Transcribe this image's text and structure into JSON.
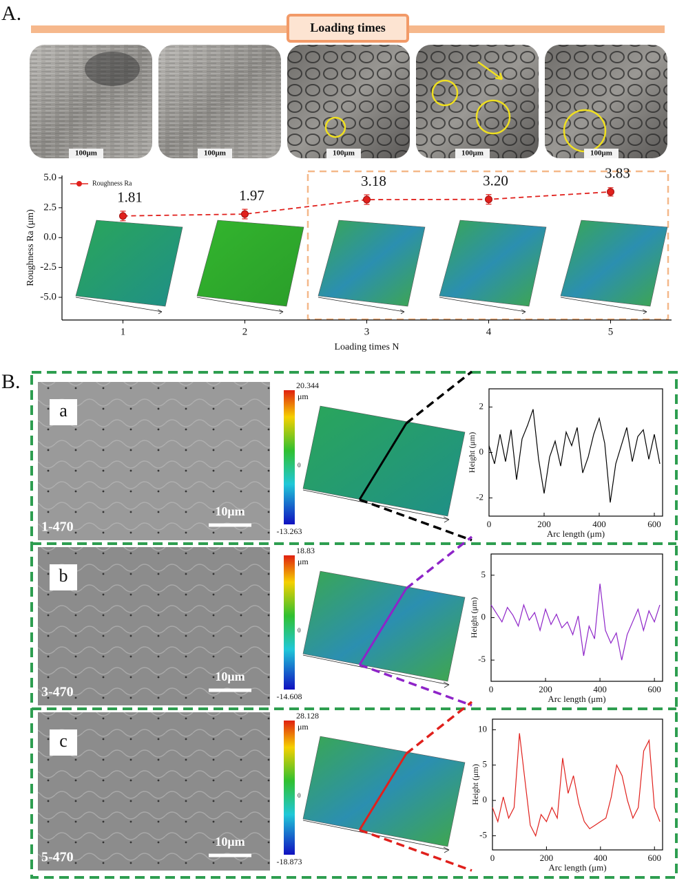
{
  "figure": {
    "label_a": "A.",
    "banner": "Loading times",
    "micrograph_scales": [
      "100μm",
      "100μm",
      "100μm",
      "100μm",
      "100μm"
    ],
    "label_b": "B.",
    "rows": [
      {
        "letter": "a",
        "sample": "1-470",
        "scale": "10μm",
        "colorbar": {
          "max": 20.344,
          "unit": "μm",
          "mid": 0,
          "min": -13.263
        }
      },
      {
        "letter": "b",
        "sample": "3-470",
        "scale": "10μm",
        "colorbar": {
          "max": 18.83,
          "unit": "μm",
          "mid": 0,
          "min": -14.608
        }
      },
      {
        "letter": "c",
        "sample": "5-470",
        "scale": "10μm",
        "colorbar": {
          "max": 28.128,
          "unit": "μm",
          "mid": 0,
          "min": -18.873
        }
      }
    ]
  },
  "chart_data": [
    {
      "type": "line",
      "x": [
        1,
        2,
        3,
        4,
        5
      ],
      "xlim": [
        0.5,
        5.5
      ],
      "xticks": [
        1,
        2,
        3,
        4,
        5
      ],
      "ylim": [
        -6.9,
        5.2
      ],
      "yticks": [
        {
          "value": -5,
          "label": "-5.0"
        },
        {
          "value": -2.5,
          "label": "-2.5"
        },
        {
          "value": 0,
          "label": "0.0"
        },
        {
          "value": 2.5,
          "label": "2.5"
        },
        {
          "value": 5,
          "label": "5.0"
        }
      ],
      "xlabel": "Loading times N",
      "ylabel": "Roughness Ra (μm)",
      "legend": "top-left",
      "series": [
        {
          "name": "Roughness Ra",
          "color": "#e0201c",
          "values": [
            1.81,
            1.97,
            3.18,
            3.2,
            3.83
          ],
          "errors": [
            0.4,
            0.4,
            0.4,
            0.4,
            0.35
          ],
          "value_labels": [
            "1.81",
            "1.97",
            "3.18",
            "3.20",
            "3.83"
          ]
        }
      ]
    },
    {
      "type": "line",
      "color": "#000000",
      "xlabel": "Arc length (μm)",
      "ylabel": "Height (μm)",
      "xlim": [
        0,
        630
      ],
      "xticks": [
        0,
        200,
        400,
        600
      ],
      "ylim": [
        -2.8,
        2.8
      ],
      "yticks": [
        -2,
        0,
        2
      ],
      "x": [
        0,
        20,
        40,
        60,
        80,
        100,
        120,
        140,
        160,
        180,
        200,
        220,
        240,
        260,
        280,
        300,
        320,
        340,
        360,
        380,
        400,
        420,
        440,
        460,
        480,
        500,
        520,
        540,
        560,
        580,
        600,
        620
      ],
      "values": [
        0.3,
        -0.5,
        0.8,
        -0.4,
        1.0,
        -1.2,
        0.6,
        1.2,
        1.9,
        -0.3,
        -1.8,
        -0.2,
        0.5,
        -0.6,
        0.9,
        0.3,
        1.1,
        -0.9,
        -0.2,
        0.8,
        1.5,
        0.4,
        -2.2,
        -0.5,
        0.3,
        1.1,
        -0.4,
        0.7,
        1.0,
        -0.3,
        0.8,
        -0.5
      ]
    },
    {
      "type": "line",
      "color": "#8e24c8",
      "xlabel": "Arc length (μm)",
      "ylabel": "Height (μm)",
      "xlim": [
        0,
        630
      ],
      "xticks": [
        0,
        200,
        400,
        600
      ],
      "ylim": [
        -7.5,
        7.5
      ],
      "yticks": [
        -5,
        0,
        5
      ],
      "x": [
        0,
        20,
        40,
        60,
        80,
        100,
        120,
        140,
        160,
        180,
        200,
        220,
        240,
        260,
        280,
        300,
        320,
        340,
        360,
        380,
        400,
        420,
        440,
        460,
        480,
        500,
        520,
        540,
        560,
        580,
        600,
        620
      ],
      "values": [
        1.5,
        0.5,
        -0.5,
        1.2,
        0.3,
        -1.0,
        1.5,
        -0.3,
        0.6,
        -1.5,
        1.0,
        -0.8,
        0.4,
        -1.2,
        -0.5,
        -2.0,
        0.2,
        -4.5,
        -1.0,
        -2.5,
        4.0,
        -1.5,
        -3.0,
        -1.8,
        -5.0,
        -2.0,
        -0.5,
        1.0,
        -1.5,
        0.8,
        -0.5,
        1.5
      ]
    },
    {
      "type": "line",
      "color": "#e0201c",
      "xlabel": "Arc length (μm)",
      "ylabel": "Height (μm)",
      "xlim": [
        0,
        630
      ],
      "xticks": [
        0,
        200,
        400,
        600
      ],
      "ylim": [
        -7,
        11.5
      ],
      "yticks": [
        -5,
        0,
        5,
        10
      ],
      "x": [
        0,
        20,
        40,
        60,
        80,
        100,
        120,
        140,
        160,
        180,
        200,
        220,
        240,
        260,
        280,
        300,
        320,
        340,
        360,
        380,
        400,
        420,
        440,
        460,
        480,
        500,
        520,
        540,
        560,
        580,
        600,
        620
      ],
      "values": [
        -1.0,
        -3.0,
        0.5,
        -2.5,
        -1.0,
        9.5,
        3.0,
        -3.5,
        -5.0,
        -2.0,
        -3.0,
        -1.0,
        -2.5,
        6.0,
        1.0,
        3.5,
        -0.5,
        -3.0,
        -4.0,
        -3.5,
        -3.0,
        -2.5,
        0.5,
        5.0,
        3.5,
        0.0,
        -2.5,
        -1.0,
        7.0,
        8.5,
        -1.0,
        -3.0
      ]
    }
  ]
}
